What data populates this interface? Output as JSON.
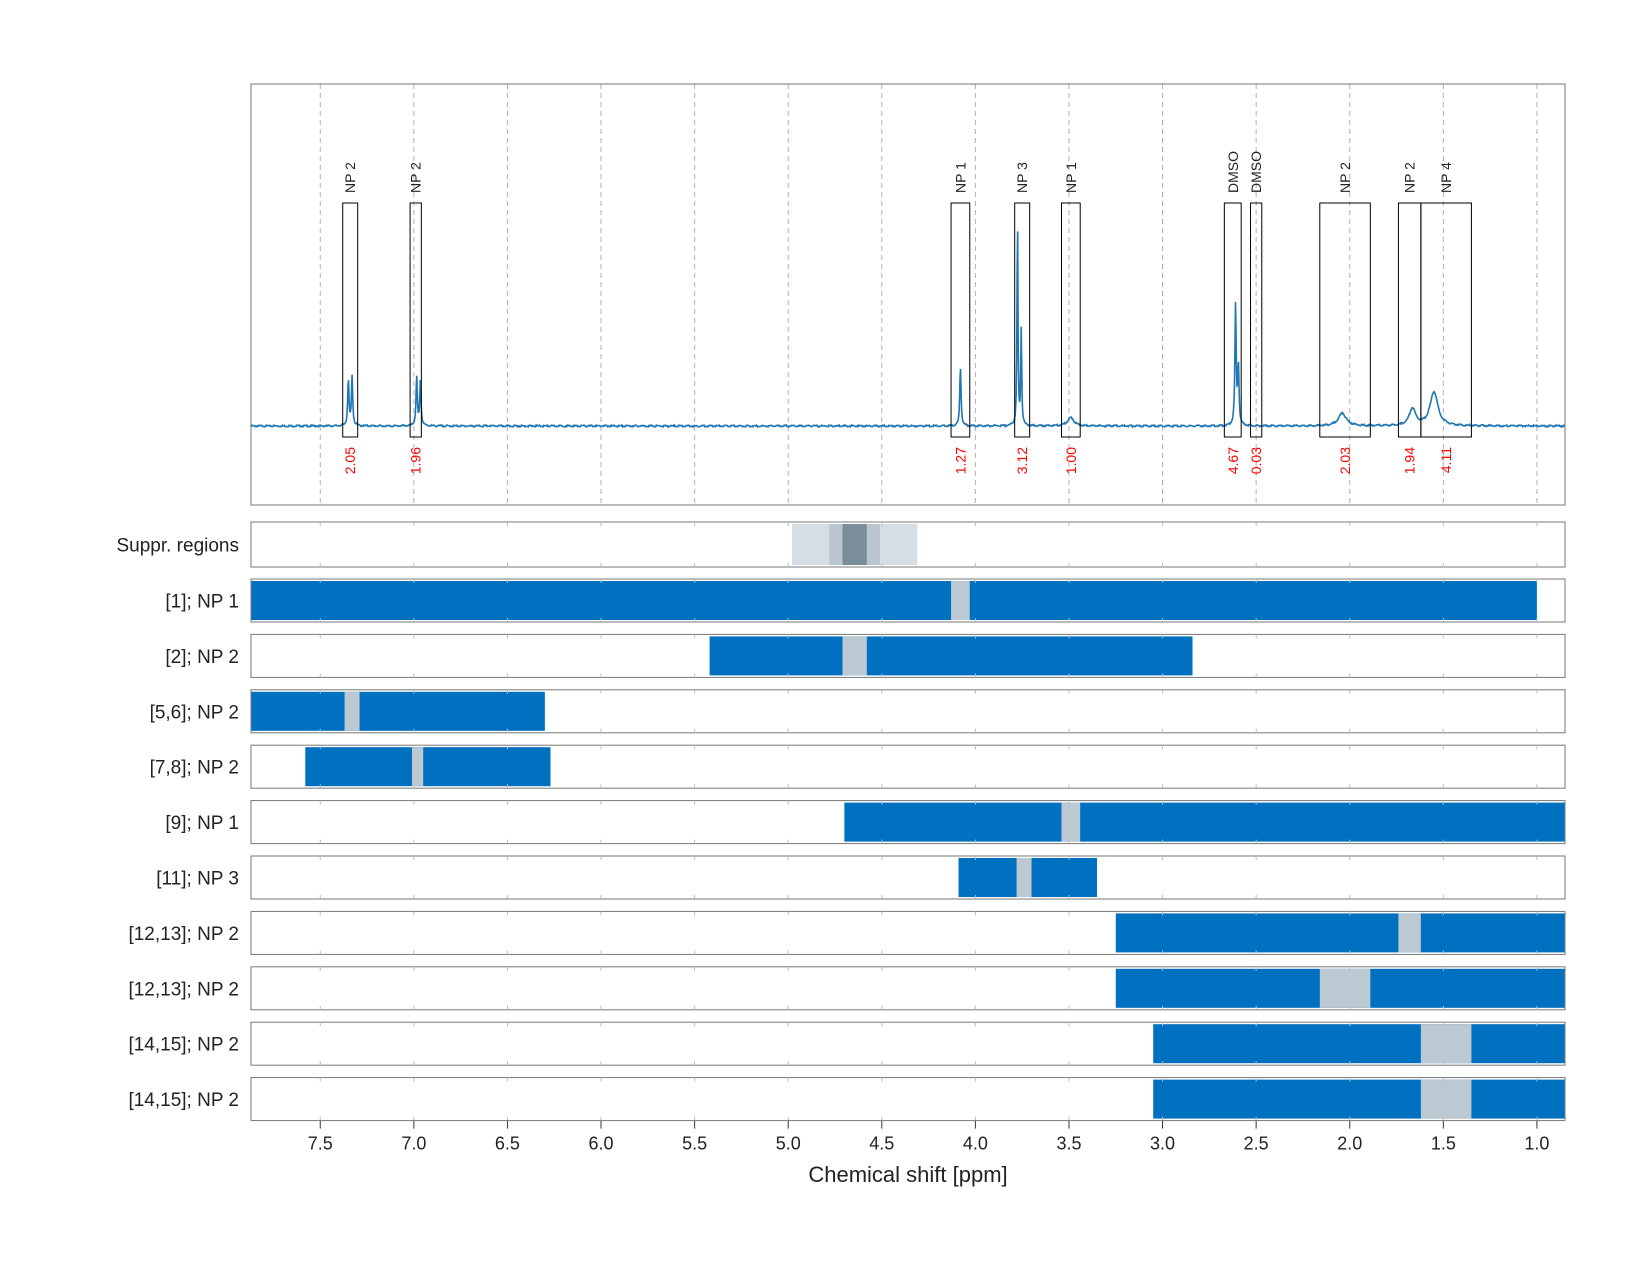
{
  "chart_data": {
    "type": "line",
    "title": "",
    "xlabel": "Chemical shift [ppm]",
    "ylabel": "",
    "xlim": [
      7.87,
      0.85
    ],
    "xticks": [
      7.5,
      7.0,
      6.5,
      6.0,
      5.5,
      5.0,
      4.5,
      4.0,
      3.5,
      3.0,
      2.5,
      2.0,
      1.5,
      1.0
    ],
    "xtick_labels": [
      "7.5",
      "7.0",
      "6.5",
      "6.0",
      "5.5",
      "5.0",
      "4.5",
      "4.0",
      "3.5",
      "3.0",
      "2.5",
      "2.0",
      "1.5",
      "1.0"
    ],
    "colors": {
      "spectrum": "#1f77b4",
      "window": "#0070c0",
      "excluded": "#bcc9d2",
      "integral_text": "#ff0000",
      "grid": "#b0b0b0"
    },
    "spectrum": {
      "baseline": 0,
      "peaks": [
        {
          "ppm": 7.35,
          "height": 0.22,
          "width": 0.004
        },
        {
          "ppm": 7.33,
          "height": 0.23,
          "width": 0.004
        },
        {
          "ppm": 6.985,
          "height": 0.23,
          "width": 0.004
        },
        {
          "ppm": 6.965,
          "height": 0.21,
          "width": 0.004
        },
        {
          "ppm": 4.08,
          "height": 0.28,
          "width": 0.004
        },
        {
          "ppm": 3.775,
          "height": 0.98,
          "width": 0.003
        },
        {
          "ppm": 3.755,
          "height": 0.45,
          "width": 0.003
        },
        {
          "ppm": 3.49,
          "height": 0.04,
          "width": 0.02
        },
        {
          "ppm": 2.61,
          "height": 0.57,
          "width": 0.004
        },
        {
          "ppm": 2.595,
          "height": 0.28,
          "width": 0.004
        },
        {
          "ppm": 2.04,
          "height": 0.06,
          "width": 0.025
        },
        {
          "ppm": 1.665,
          "height": 0.08,
          "width": 0.02
        },
        {
          "ppm": 1.55,
          "height": 0.16,
          "width": 0.025
        }
      ]
    },
    "peak_regions": [
      {
        "label": "NP 2",
        "from": 7.38,
        "to": 7.3,
        "integral": "2.05"
      },
      {
        "label": "NP 2",
        "from": 7.02,
        "to": 6.96,
        "integral": "1.96"
      },
      {
        "label": "NP 1",
        "from": 4.13,
        "to": 4.03,
        "integral": "1.27"
      },
      {
        "label": "NP 3",
        "from": 3.79,
        "to": 3.71,
        "integral": "3.12"
      },
      {
        "label": "NP 1",
        "from": 3.54,
        "to": 3.44,
        "integral": "1.00"
      },
      {
        "label": "DMSO",
        "from": 2.67,
        "to": 2.58,
        "integral": "4.67"
      },
      {
        "label": "DMSO",
        "from": 2.53,
        "to": 2.47,
        "integral": "0.03"
      },
      {
        "label": "NP 2",
        "from": 2.16,
        "to": 1.89,
        "integral": "2.03"
      },
      {
        "label": "NP 2",
        "from": 1.74,
        "to": 1.62,
        "integral": "1.94"
      },
      {
        "label": "NP 4",
        "from": 1.62,
        "to": 1.35,
        "integral": "4.11"
      }
    ],
    "suppression": {
      "label": "Suppr. regions",
      "bands": [
        {
          "from": 4.98,
          "to": 4.31,
          "shade": "#d6dde4"
        },
        {
          "from": 4.78,
          "to": 4.51,
          "shade": "#b9c5cf"
        },
        {
          "from": 4.71,
          "to": 4.58,
          "shade": "#7a8d9b"
        }
      ]
    },
    "windows": [
      {
        "label": "[1]; NP 1",
        "from": 7.87,
        "to": 1.0,
        "excl_from": 4.13,
        "excl_to": 4.03
      },
      {
        "label": "[2]; NP 2",
        "from": 5.42,
        "to": 2.84,
        "excl_from": 4.71,
        "excl_to": 4.58
      },
      {
        "label": "[5,6]; NP 2",
        "from": 7.87,
        "to": 6.3,
        "excl_from": 7.37,
        "excl_to": 7.29
      },
      {
        "label": "[7,8]; NP 2",
        "from": 7.58,
        "to": 6.27,
        "excl_from": 7.01,
        "excl_to": 6.95
      },
      {
        "label": "[9]; NP 1",
        "from": 4.7,
        "to": 0.85,
        "excl_from": 3.54,
        "excl_to": 3.44
      },
      {
        "label": "[11]; NP 3",
        "from": 4.09,
        "to": 3.35,
        "excl_from": 3.78,
        "excl_to": 3.7
      },
      {
        "label": "[12,13]; NP 2",
        "from": 3.25,
        "to": 0.85,
        "excl_from": 1.74,
        "excl_to": 1.62
      },
      {
        "label": "[12,13]; NP 2",
        "from": 3.25,
        "to": 0.85,
        "excl_from": 2.16,
        "excl_to": 1.89
      },
      {
        "label": "[14,15]; NP 2",
        "from": 3.05,
        "to": 0.85,
        "excl_from": 1.62,
        "excl_to": 1.35
      },
      {
        "label": "[14,15]; NP 2",
        "from": 3.05,
        "to": 0.85,
        "excl_from": 1.62,
        "excl_to": 1.35
      }
    ]
  }
}
